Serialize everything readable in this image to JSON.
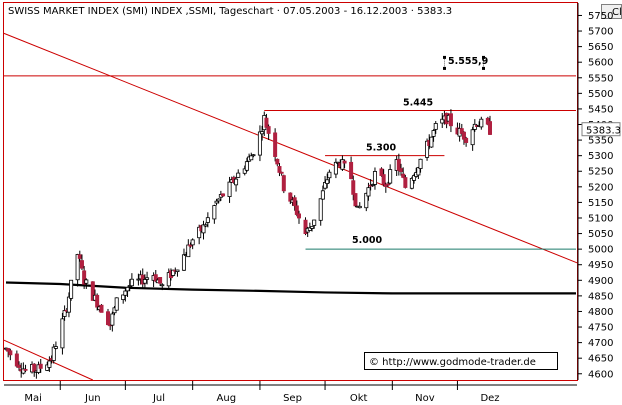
{
  "chart_title": "SWISS MARKET INDEX (SMI) INDEX ,SSMI, Tageschart · 07.05.2003 - 16.12.2003 · 5383.3",
  "corner_button": "Cl",
  "watermark": "© http://www.godmode-trader.de",
  "colors": {
    "frame": "#cc0000",
    "up": "#ffffff",
    "down": "#b02040",
    "trendline": "#cc0000",
    "support": "#1a7a6a",
    "moving_average": "#000000"
  },
  "chart_data": {
    "type": "candlestick",
    "title": "SWISS MARKET INDEX (SMI) INDEX ,SSMI, Tageschart · 07.05.2003 - 16.12.2003 · 5383.3",
    "x_tick_labels": [
      "Mai",
      "Jun",
      "Jul",
      "Aug",
      "Sep",
      "Okt",
      "Nov",
      "Dez"
    ],
    "y_tick_labels": [
      "4600",
      "4650",
      "4700",
      "4750",
      "4800",
      "4850",
      "4900",
      "4950",
      "5000",
      "5050",
      "5100",
      "5150",
      "5200",
      "5250",
      "5300",
      "5350",
      "5400",
      "5450",
      "5500",
      "5550",
      "5600",
      "5650",
      "5700",
      "5750"
    ],
    "ylim": [
      4580,
      5790
    ],
    "last_value_label": "5383.3",
    "grid": false,
    "annotations": [
      {
        "text": "5.555,9",
        "value": 5556
      },
      {
        "text": "5.445",
        "value": 5445
      },
      {
        "text": "5.300",
        "value": 5300
      },
      {
        "text": "5.000",
        "value": 5000
      }
    ],
    "horizontal_lines": [
      {
        "name": "resistance",
        "value": 5556,
        "from": "2003-05-07",
        "to": "2003-12-16"
      },
      {
        "name": "high",
        "value": 5445,
        "from": "2003-09-03",
        "to": "2003-12-16"
      },
      {
        "name": "breakout",
        "value": 5300,
        "from": "2003-10-01",
        "to": "2003-11-25"
      },
      {
        "name": "support",
        "value": 5000,
        "from": "2003-09-22",
        "to": "2003-12-16"
      }
    ],
    "trendlines": [
      {
        "name": "downtrend",
        "from": [
          "2003-05-07",
          5690
        ],
        "to": [
          "2003-12-16",
          5068
        ]
      },
      {
        "name": "lower-channel",
        "from": [
          "2003-05-07",
          4705
        ],
        "to": [
          "2003-06-16",
          4580
        ]
      }
    ],
    "moving_average": [
      [
        "2003-05-07",
        4893
      ],
      [
        "2003-06-01",
        4888
      ],
      [
        "2003-07-01",
        4876
      ],
      [
        "2003-08-01",
        4870
      ],
      [
        "2003-09-01",
        4866
      ],
      [
        "2003-10-01",
        4861
      ],
      [
        "2003-11-01",
        4858
      ],
      [
        "2003-12-16",
        4858
      ]
    ],
    "anchors": [
      [
        "2003-05-07",
        4680
      ],
      [
        "2003-05-12",
        4640
      ],
      [
        "2003-05-16",
        4610
      ],
      [
        "2003-05-22",
        4615
      ],
      [
        "2003-05-28",
        4650
      ],
      [
        "2003-06-03",
        4790
      ],
      [
        "2003-06-05",
        4850
      ],
      [
        "2003-06-09",
        4985
      ],
      [
        "2003-06-12",
        4900
      ],
      [
        "2003-06-17",
        4840
      ],
      [
        "2003-06-20",
        4810
      ],
      [
        "2003-06-24",
        4760
      ],
      [
        "2003-06-27",
        4830
      ],
      [
        "2003-07-02",
        4880
      ],
      [
        "2003-07-08",
        4900
      ],
      [
        "2003-07-14",
        4920
      ],
      [
        "2003-07-18",
        4880
      ],
      [
        "2003-07-23",
        4930
      ],
      [
        "2003-07-28",
        4980
      ],
      [
        "2003-08-01",
        5030
      ],
      [
        "2003-08-06",
        5070
      ],
      [
        "2003-08-12",
        5150
      ],
      [
        "2003-08-18",
        5200
      ],
      [
        "2003-08-22",
        5240
      ],
      [
        "2003-08-28",
        5300
      ],
      [
        "2003-09-01",
        5370
      ],
      [
        "2003-09-03",
        5420
      ],
      [
        "2003-09-08",
        5310
      ],
      [
        "2003-09-12",
        5200
      ],
      [
        "2003-09-18",
        5120
      ],
      [
        "2003-09-22",
        5050
      ],
      [
        "2003-09-25",
        5080
      ],
      [
        "2003-09-30",
        5180
      ],
      [
        "2003-10-03",
        5250
      ],
      [
        "2003-10-08",
        5280
      ],
      [
        "2003-10-13",
        5230
      ],
      [
        "2003-10-16",
        5120
      ],
      [
        "2003-10-20",
        5180
      ],
      [
        "2003-10-24",
        5240
      ],
      [
        "2003-10-29",
        5210
      ],
      [
        "2003-11-03",
        5280
      ],
      [
        "2003-11-07",
        5200
      ],
      [
        "2003-11-12",
        5260
      ],
      [
        "2003-11-17",
        5330
      ],
      [
        "2003-11-21",
        5390
      ],
      [
        "2003-11-26",
        5420
      ],
      [
        "2003-12-01",
        5380
      ],
      [
        "2003-12-05",
        5360
      ],
      [
        "2003-12-10",
        5410
      ],
      [
        "2003-12-16",
        5383
      ]
    ]
  }
}
